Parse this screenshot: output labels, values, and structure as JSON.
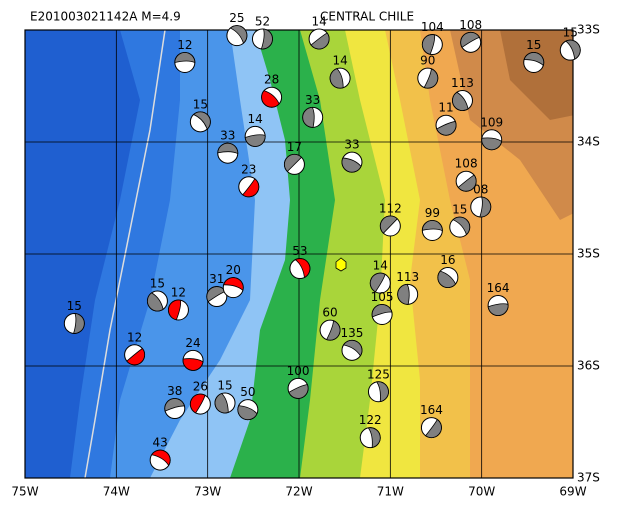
{
  "title": "E201003021142A  M=4.9",
  "region": "CENTRAL CHILE",
  "xlim": [
    -75,
    -69
  ],
  "ylim": [
    -37,
    -33
  ],
  "xticks": [
    {
      "value": -75,
      "label": "75W"
    },
    {
      "value": -74,
      "label": "74W"
    },
    {
      "value": -73,
      "label": "73W"
    },
    {
      "value": -72,
      "label": "72W"
    },
    {
      "value": -71,
      "label": "71W"
    },
    {
      "value": -70,
      "label": "70W"
    },
    {
      "value": -69,
      "label": "69W"
    }
  ],
  "yticks": [
    {
      "value": -33,
      "label": "33S"
    },
    {
      "value": -34,
      "label": "34S"
    },
    {
      "value": -35,
      "label": "35S"
    },
    {
      "value": -36,
      "label": "36S"
    },
    {
      "value": -37,
      "label": "37S"
    }
  ],
  "events": [
    {
      "label": "12",
      "lon": -73.25,
      "lat": -33.29,
      "color": "#808080"
    },
    {
      "label": "15",
      "lon": -73.08,
      "lat": -33.82,
      "color": "#808080"
    },
    {
      "label": "15",
      "lon": -74.46,
      "lat": -35.62,
      "color": "#808080"
    },
    {
      "label": "12",
      "lon": -73.8,
      "lat": -35.9,
      "color": "#ff0000"
    },
    {
      "label": "24",
      "lon": -73.16,
      "lat": -35.95,
      "color": "#ff0000"
    },
    {
      "label": "15",
      "lon": -73.55,
      "lat": -35.42,
      "color": "#808080"
    },
    {
      "label": "12",
      "lon": -73.32,
      "lat": -35.5,
      "color": "#ff0000"
    },
    {
      "label": "31",
      "lon": -72.9,
      "lat": -35.38,
      "color": "#808080"
    },
    {
      "label": "20",
      "lon": -72.72,
      "lat": -35.3,
      "color": "#ff0000"
    },
    {
      "label": "53",
      "lon": -71.99,
      "lat": -35.13,
      "color": "#ff0000"
    },
    {
      "label": "60",
      "lon": -71.66,
      "lat": -35.68,
      "color": "#808080"
    },
    {
      "label": "100",
      "lon": -72.01,
      "lat": -36.2,
      "color": "#808080"
    },
    {
      "label": "50",
      "lon": -72.56,
      "lat": -36.39,
      "color": "#808080"
    },
    {
      "label": "15",
      "lon": -72.81,
      "lat": -36.33,
      "color": "#808080"
    },
    {
      "label": "26",
      "lon": -73.08,
      "lat": -36.34,
      "color": "#ff0000"
    },
    {
      "label": "38",
      "lon": -73.36,
      "lat": -36.38,
      "color": "#808080"
    },
    {
      "label": "43",
      "lon": -73.52,
      "lat": -36.84,
      "color": "#ff0000"
    },
    {
      "label": "122",
      "lon": -71.22,
      "lat": -36.64,
      "color": "#808080"
    },
    {
      "label": "164",
      "lon": -70.55,
      "lat": -36.55,
      "color": "#808080"
    },
    {
      "label": "164",
      "lon": -69.82,
      "lat": -35.46,
      "color": "#808080"
    },
    {
      "label": "16",
      "lon": -70.37,
      "lat": -35.21,
      "color": "#808080"
    },
    {
      "label": "113",
      "lon": -70.81,
      "lat": -35.36,
      "color": "#808080"
    },
    {
      "label": "112",
      "lon": -71.0,
      "lat": -34.75,
      "color": "#808080"
    },
    {
      "label": "99",
      "lon": -70.54,
      "lat": -34.79,
      "color": "#808080"
    },
    {
      "label": "15",
      "lon": -70.24,
      "lat": -34.76,
      "color": "#808080"
    },
    {
      "label": "08",
      "lon": -70.01,
      "lat": -34.58,
      "color": "#808080"
    },
    {
      "label": "108",
      "lon": -70.17,
      "lat": -34.35,
      "color": "#808080"
    },
    {
      "label": "109",
      "lon": -69.89,
      "lat": -33.98,
      "color": "#808080"
    },
    {
      "label": "113",
      "lon": -70.21,
      "lat": -33.63,
      "color": "#808080"
    },
    {
      "label": "104",
      "lon": -70.54,
      "lat": -33.13,
      "color": "#808080"
    },
    {
      "label": "108",
      "lon": -70.12,
      "lat": -33.11,
      "color": "#808080"
    },
    {
      "label": "15",
      "lon": -69.43,
      "lat": -33.29,
      "color": "#808080"
    },
    {
      "label": "15",
      "lon": -69.03,
      "lat": -33.18,
      "color": "#808080"
    },
    {
      "label": "90",
      "lon": -70.59,
      "lat": -33.43,
      "color": "#808080"
    },
    {
      "label": "11",
      "lon": -70.39,
      "lat": -33.85,
      "color": "#808080"
    },
    {
      "label": "33",
      "lon": -71.42,
      "lat": -34.18,
      "color": "#808080"
    },
    {
      "label": "14",
      "lon": -71.55,
      "lat": -33.43,
      "color": "#808080"
    },
    {
      "label": "14",
      "lon": -71.11,
      "lat": -35.26,
      "color": "#808080"
    },
    {
      "label": "105",
      "lon": -71.09,
      "lat": -35.54,
      "color": "#808080"
    },
    {
      "label": "135",
      "lon": -71.42,
      "lat": -35.86,
      "color": "#808080"
    },
    {
      "label": "125",
      "lon": -71.13,
      "lat": -36.23,
      "color": "#808080"
    },
    {
      "label": "23",
      "lon": -72.55,
      "lat": -34.4,
      "color": "#ff0000"
    },
    {
      "label": "14",
      "lon": -72.48,
      "lat": -33.95,
      "color": "#808080"
    },
    {
      "label": "28",
      "lon": -72.3,
      "lat": -33.6,
      "color": "#ff0000"
    },
    {
      "label": "33",
      "lon": -71.85,
      "lat": -33.78,
      "color": "#808080"
    },
    {
      "label": "17",
      "lon": -72.05,
      "lat": -34.2,
      "color": "#808080"
    },
    {
      "label": "33",
      "lon": -72.78,
      "lat": -34.1,
      "color": "#808080"
    },
    {
      "label": "25",
      "lon": -72.68,
      "lat": -33.05,
      "color": "#808080"
    },
    {
      "label": "52",
      "lon": -72.4,
      "lat": -33.08,
      "color": "#808080"
    },
    {
      "label": "14",
      "lon": -71.78,
      "lat": -33.08,
      "color": "#808080"
    }
  ]
}
